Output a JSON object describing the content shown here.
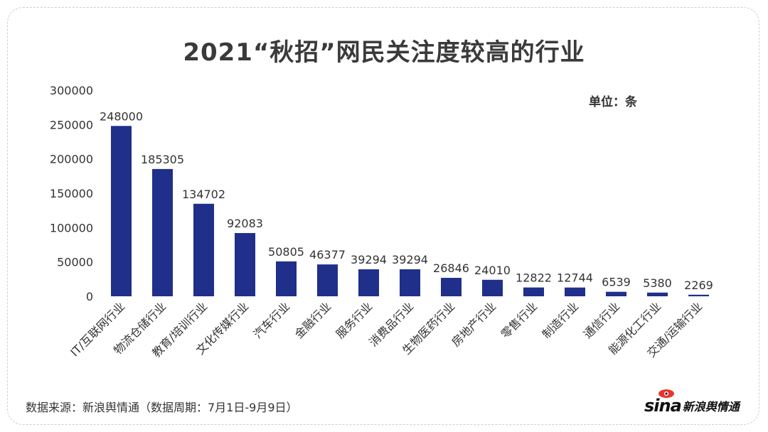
{
  "chart_data": {
    "type": "bar",
    "title": "2021“秋招”网民关注度较高的行业",
    "unit_label": "单位：条",
    "categories": [
      "IT/互联网行业",
      "物流仓储行业",
      "教育/培训行业",
      "文化传媒行业",
      "汽车行业",
      "金融行业",
      "服务行业",
      "消费品行业",
      "生物医药行业",
      "房地产行业",
      "零售行业",
      "制造行业",
      "通信行业",
      "能源化工行业",
      "交通/运输行业"
    ],
    "values": [
      248000,
      185305,
      134702,
      92083,
      50805,
      46377,
      39294,
      39294,
      26846,
      24010,
      12822,
      12744,
      6539,
      5380,
      2269
    ],
    "ylim": [
      0,
      300000
    ],
    "yticks": [
      "300000",
      "250000",
      "200000",
      "150000",
      "100000",
      "50000",
      "0"
    ],
    "bar_color": "#1f2f8a",
    "grid": false,
    "legend": "none"
  },
  "footer": {
    "source": "数据来源：新浪舆情通（数据周期：7月1日-9月9日）",
    "logo_mark": "sina",
    "logo_text": "新浪舆情通"
  }
}
